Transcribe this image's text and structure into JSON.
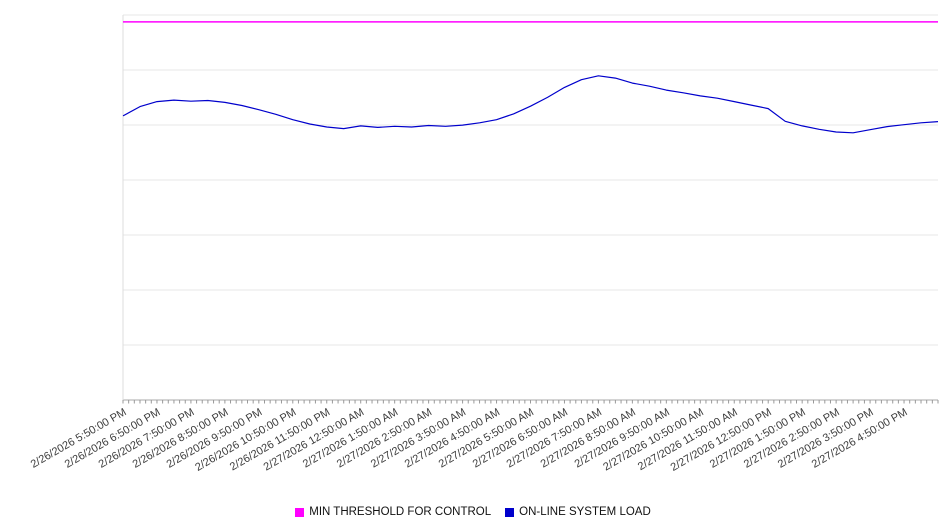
{
  "chart_data": {
    "type": "line",
    "title": "",
    "xlabel": "",
    "ylabel": "",
    "ylim": [
      0,
      100
    ],
    "y_tick_labels_visible": false,
    "grid": "horizontal",
    "grid_divisions": 7,
    "legend_position": "bottom",
    "x_minor_ticks_per_interval": 6,
    "x_labels": [
      "2/26/2026 5:50:00 PM",
      "2/26/2026 6:50:00 PM",
      "2/26/2026 7:50:00 PM",
      "2/26/2026 8:50:00 PM",
      "2/26/2026 9:50:00 PM",
      "2/26/2026 10:50:00 PM",
      "2/26/2026 11:50:00 PM",
      "2/27/2026 12:50:00 AM",
      "2/27/2026 1:50:00 AM",
      "2/27/2026 2:50:00 AM",
      "2/27/2026 3:50:00 AM",
      "2/27/2026 4:50:00 AM",
      "2/27/2026 5:50:00 AM",
      "2/27/2026 6:50:00 AM",
      "2/27/2026 7:50:00 AM",
      "2/27/2026 8:50:00 AM",
      "2/27/2026 9:50:00 AM",
      "2/27/2026 10:50:00 AM",
      "2/27/2026 11:50:00 AM",
      "2/27/2026 12:50:00 PM",
      "2/27/2026 1:50:00 PM",
      "2/27/2026 2:50:00 PM",
      "2/27/2026 3:50:00 PM",
      "2/27/2026 4:50:00 PM"
    ],
    "series": [
      {
        "name": "MIN THRESHOLD FOR CONTROL",
        "color": "#ff00ff",
        "style": "flat-threshold",
        "value": 98.2
      },
      {
        "name": "ON-LINE SYSTEM LOAD",
        "color": "#0000cc",
        "style": "line",
        "sample_interval_hours": 0.5,
        "values": [
          73.8,
          76.2,
          77.5,
          77.9,
          77.6,
          77.8,
          77.3,
          76.5,
          75.4,
          74.2,
          72.8,
          71.7,
          70.9,
          70.5,
          71.2,
          70.8,
          71.1,
          70.9,
          71.3,
          71.1,
          71.4,
          72.0,
          72.8,
          74.3,
          76.3,
          78.6,
          81.2,
          83.2,
          84.2,
          83.6,
          82.3,
          81.5,
          80.5,
          79.8,
          79.0,
          78.4,
          77.5,
          76.6,
          75.7,
          72.4,
          71.2,
          70.3,
          69.6,
          69.4,
          70.2,
          71.0,
          71.5,
          72.0,
          72.3
        ]
      }
    ]
  }
}
